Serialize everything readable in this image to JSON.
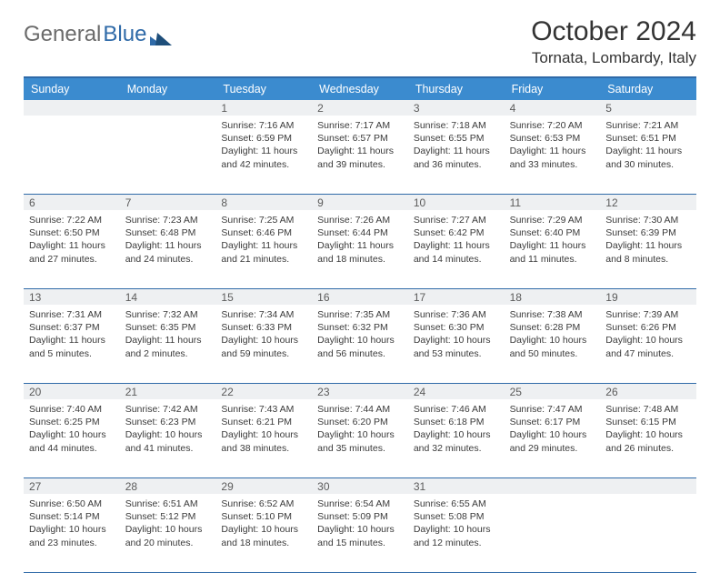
{
  "brand": {
    "part1": "General",
    "part2": "Blue"
  },
  "title": "October 2024",
  "location": "Tornata, Lombardy, Italy",
  "colors": {
    "header_bg": "#3b8bcf",
    "rule": "#2f6aa8",
    "daynum_bg": "#eef0f2",
    "text": "#3a3a3a",
    "logo_gray": "#6b6b6b",
    "logo_blue": "#2f6aa8"
  },
  "days_of_week": [
    "Sunday",
    "Monday",
    "Tuesday",
    "Wednesday",
    "Thursday",
    "Friday",
    "Saturday"
  ],
  "weeks": [
    [
      null,
      null,
      {
        "n": "1",
        "sr": "7:16 AM",
        "ss": "6:59 PM",
        "dl": "11 hours and 42 minutes."
      },
      {
        "n": "2",
        "sr": "7:17 AM",
        "ss": "6:57 PM",
        "dl": "11 hours and 39 minutes."
      },
      {
        "n": "3",
        "sr": "7:18 AM",
        "ss": "6:55 PM",
        "dl": "11 hours and 36 minutes."
      },
      {
        "n": "4",
        "sr": "7:20 AM",
        "ss": "6:53 PM",
        "dl": "11 hours and 33 minutes."
      },
      {
        "n": "5",
        "sr": "7:21 AM",
        "ss": "6:51 PM",
        "dl": "11 hours and 30 minutes."
      }
    ],
    [
      {
        "n": "6",
        "sr": "7:22 AM",
        "ss": "6:50 PM",
        "dl": "11 hours and 27 minutes."
      },
      {
        "n": "7",
        "sr": "7:23 AM",
        "ss": "6:48 PM",
        "dl": "11 hours and 24 minutes."
      },
      {
        "n": "8",
        "sr": "7:25 AM",
        "ss": "6:46 PM",
        "dl": "11 hours and 21 minutes."
      },
      {
        "n": "9",
        "sr": "7:26 AM",
        "ss": "6:44 PM",
        "dl": "11 hours and 18 minutes."
      },
      {
        "n": "10",
        "sr": "7:27 AM",
        "ss": "6:42 PM",
        "dl": "11 hours and 14 minutes."
      },
      {
        "n": "11",
        "sr": "7:29 AM",
        "ss": "6:40 PM",
        "dl": "11 hours and 11 minutes."
      },
      {
        "n": "12",
        "sr": "7:30 AM",
        "ss": "6:39 PM",
        "dl": "11 hours and 8 minutes."
      }
    ],
    [
      {
        "n": "13",
        "sr": "7:31 AM",
        "ss": "6:37 PM",
        "dl": "11 hours and 5 minutes."
      },
      {
        "n": "14",
        "sr": "7:32 AM",
        "ss": "6:35 PM",
        "dl": "11 hours and 2 minutes."
      },
      {
        "n": "15",
        "sr": "7:34 AM",
        "ss": "6:33 PM",
        "dl": "10 hours and 59 minutes."
      },
      {
        "n": "16",
        "sr": "7:35 AM",
        "ss": "6:32 PM",
        "dl": "10 hours and 56 minutes."
      },
      {
        "n": "17",
        "sr": "7:36 AM",
        "ss": "6:30 PM",
        "dl": "10 hours and 53 minutes."
      },
      {
        "n": "18",
        "sr": "7:38 AM",
        "ss": "6:28 PM",
        "dl": "10 hours and 50 minutes."
      },
      {
        "n": "19",
        "sr": "7:39 AM",
        "ss": "6:26 PM",
        "dl": "10 hours and 47 minutes."
      }
    ],
    [
      {
        "n": "20",
        "sr": "7:40 AM",
        "ss": "6:25 PM",
        "dl": "10 hours and 44 minutes."
      },
      {
        "n": "21",
        "sr": "7:42 AM",
        "ss": "6:23 PM",
        "dl": "10 hours and 41 minutes."
      },
      {
        "n": "22",
        "sr": "7:43 AM",
        "ss": "6:21 PM",
        "dl": "10 hours and 38 minutes."
      },
      {
        "n": "23",
        "sr": "7:44 AM",
        "ss": "6:20 PM",
        "dl": "10 hours and 35 minutes."
      },
      {
        "n": "24",
        "sr": "7:46 AM",
        "ss": "6:18 PM",
        "dl": "10 hours and 32 minutes."
      },
      {
        "n": "25",
        "sr": "7:47 AM",
        "ss": "6:17 PM",
        "dl": "10 hours and 29 minutes."
      },
      {
        "n": "26",
        "sr": "7:48 AM",
        "ss": "6:15 PM",
        "dl": "10 hours and 26 minutes."
      }
    ],
    [
      {
        "n": "27",
        "sr": "6:50 AM",
        "ss": "5:14 PM",
        "dl": "10 hours and 23 minutes."
      },
      {
        "n": "28",
        "sr": "6:51 AM",
        "ss": "5:12 PM",
        "dl": "10 hours and 20 minutes."
      },
      {
        "n": "29",
        "sr": "6:52 AM",
        "ss": "5:10 PM",
        "dl": "10 hours and 18 minutes."
      },
      {
        "n": "30",
        "sr": "6:54 AM",
        "ss": "5:09 PM",
        "dl": "10 hours and 15 minutes."
      },
      {
        "n": "31",
        "sr": "6:55 AM",
        "ss": "5:08 PM",
        "dl": "10 hours and 12 minutes."
      },
      null,
      null
    ]
  ],
  "labels": {
    "sunrise": "Sunrise: ",
    "sunset": "Sunset: ",
    "daylight": "Daylight: "
  }
}
